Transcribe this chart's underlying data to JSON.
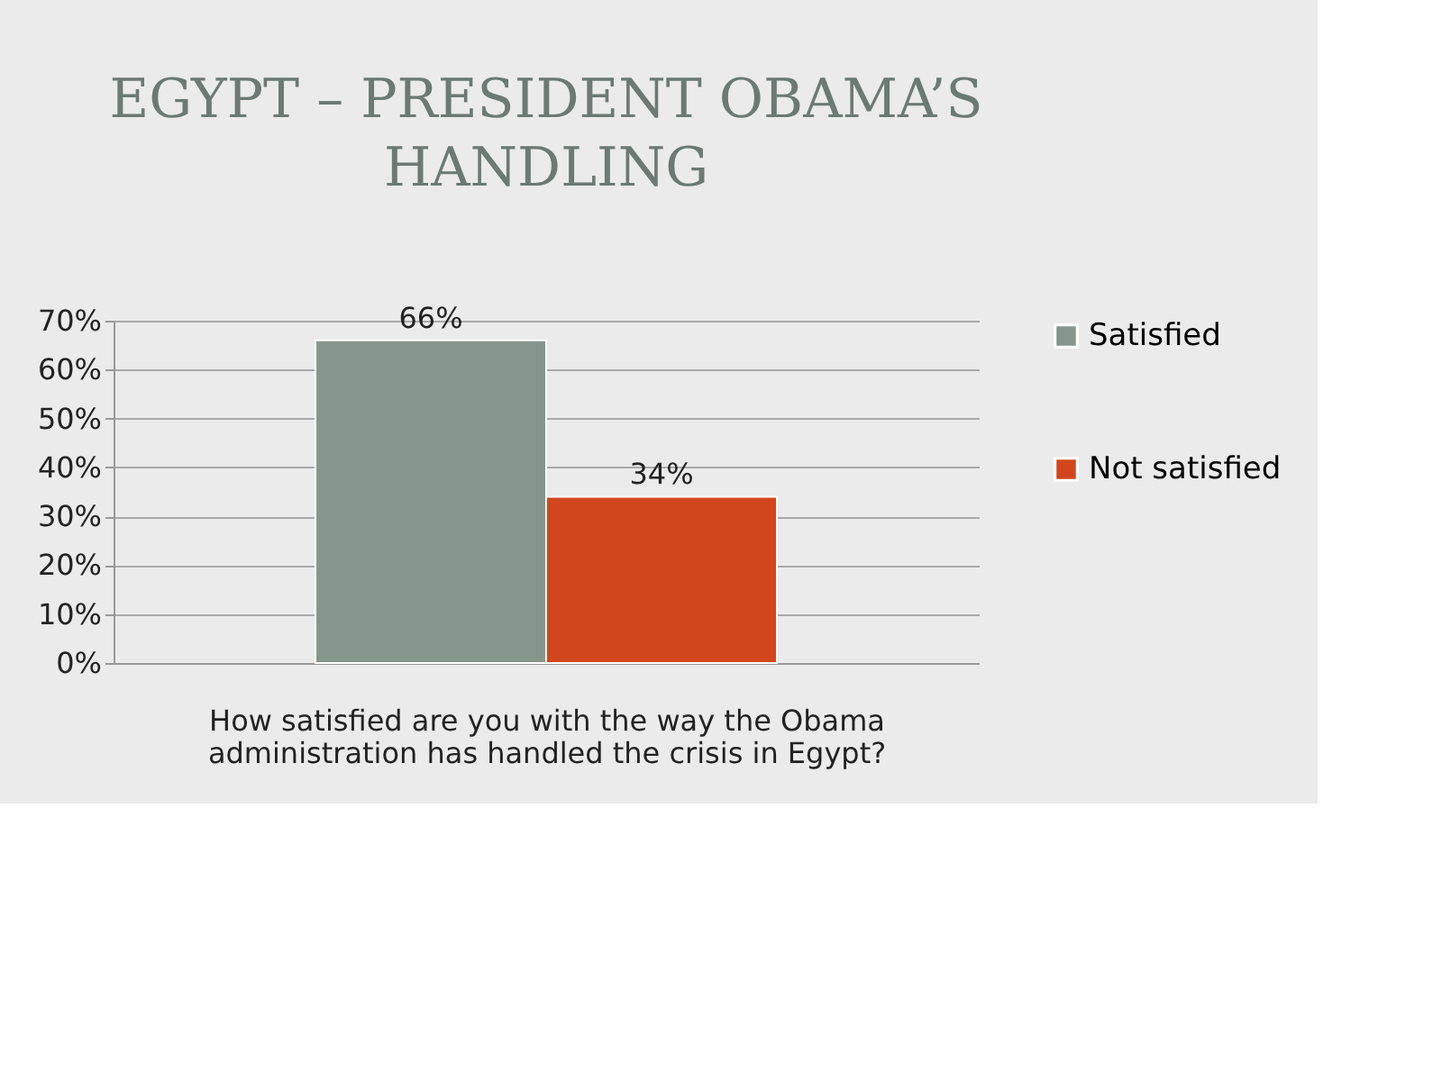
{
  "chart_data": {
    "type": "bar",
    "title": "EGYPT – PRESIDENT OBAMA’S HANDLING",
    "xlabel": "How satisfied are you with the way the Obama administration has handled the crisis in Egypt?",
    "categories": [
      null
    ],
    "series": [
      {
        "name": "Satisfied",
        "color": "#87968c",
        "values": [
          66
        ],
        "value_labels": [
          "66%"
        ]
      },
      {
        "name": "Not satisfied",
        "color": "#d2461e",
        "values": [
          34
        ],
        "value_labels": [
          "34%"
        ]
      }
    ],
    "ylim": [
      0,
      70
    ],
    "yticks": [
      {
        "value": 0,
        "label": "0%"
      },
      {
        "value": 10,
        "label": "10%"
      },
      {
        "value": 20,
        "label": "20%"
      },
      {
        "value": 30,
        "label": "30%"
      },
      {
        "value": 40,
        "label": "40%"
      },
      {
        "value": 50,
        "label": "50%"
      },
      {
        "value": 60,
        "label": "60%"
      },
      {
        "value": 70,
        "label": "70%"
      }
    ],
    "grid": "y",
    "legend": "right"
  }
}
